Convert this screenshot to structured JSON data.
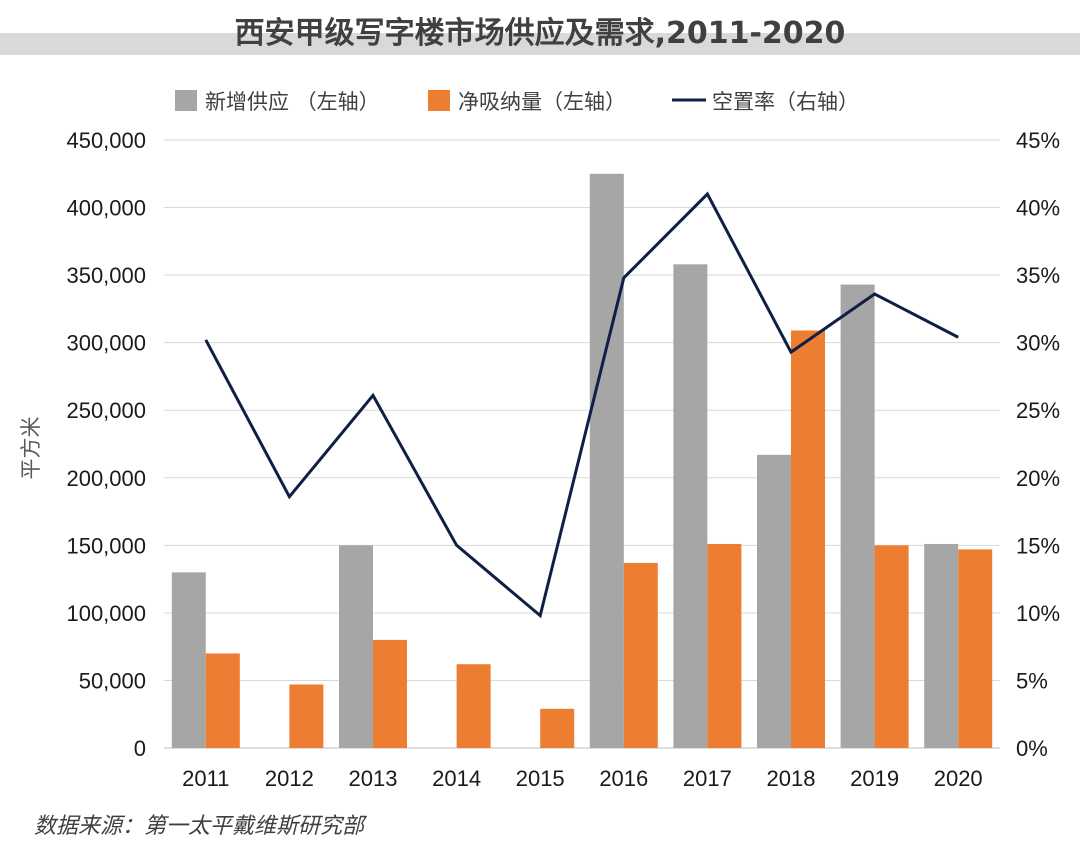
{
  "chart_data": {
    "type": "bar",
    "title": "西安甲级写字楼市场供应及需求,2011-2020",
    "categories": [
      "2011",
      "2012",
      "2013",
      "2014",
      "2015",
      "2016",
      "2017",
      "2018",
      "2019",
      "2020"
    ],
    "series": [
      {
        "name": "新增供应 （左轴）",
        "kind": "bar",
        "axis": "left",
        "color": "#a6a6a6",
        "values": [
          130000,
          0,
          150000,
          0,
          0,
          425000,
          358000,
          217000,
          343000,
          151000
        ]
      },
      {
        "name": "净吸纳量（左轴）",
        "kind": "bar",
        "axis": "left",
        "color": "#ed7d31",
        "values": [
          70000,
          47000,
          80000,
          62000,
          29000,
          137000,
          151000,
          309000,
          150000,
          147000
        ]
      },
      {
        "name": "空置率（右轴）",
        "kind": "line",
        "axis": "right",
        "color": "#0f1f45",
        "values": [
          30.2,
          18.6,
          26.1,
          15.0,
          9.8,
          34.8,
          41.0,
          29.3,
          33.6,
          30.4
        ]
      }
    ],
    "ylabel": "平方米",
    "ylim": [
      0,
      450000
    ],
    "y2lim": [
      0,
      45
    ],
    "yticks": [
      "0",
      "50,000",
      "100,000",
      "150,000",
      "200,000",
      "250,000",
      "300,000",
      "350,000",
      "400,000",
      "450,000"
    ],
    "y2ticks": [
      "0%",
      "5%",
      "10%",
      "15%",
      "20%",
      "25%",
      "30%",
      "35%",
      "40%",
      "45%"
    ],
    "grid": true,
    "legend": "top"
  },
  "source": "数据来源：第一太平戴维斯研究部"
}
